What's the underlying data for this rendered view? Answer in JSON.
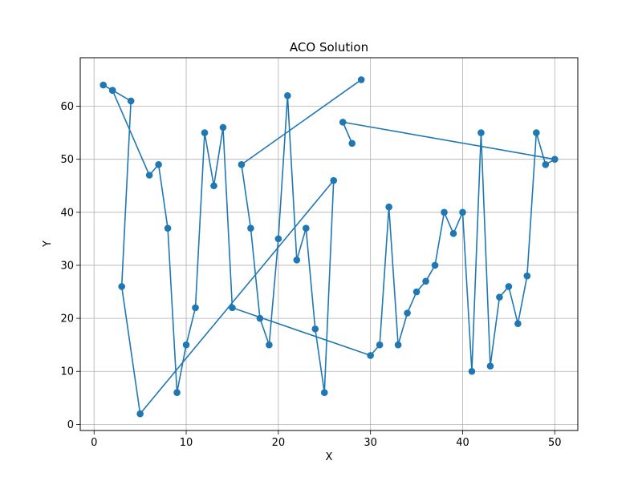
{
  "chart_data": {
    "type": "line",
    "title": "ACO Solution",
    "xlabel": "X",
    "ylabel": "Y",
    "xlim": [
      -1.5,
      52.5
    ],
    "ylim": [
      -1.15,
      69.15
    ],
    "xticks": [
      0,
      10,
      20,
      30,
      40,
      50
    ],
    "yticks": [
      0,
      10,
      20,
      30,
      40,
      50,
      60
    ],
    "grid": true,
    "marker": "circle",
    "color": "#1f77b4",
    "series": [
      {
        "x": [
          29,
          16,
          17,
          18,
          19,
          20,
          21,
          22,
          23,
          24,
          25,
          26,
          5,
          3,
          4,
          2,
          1,
          2,
          6,
          7,
          8,
          9,
          10,
          11,
          12,
          13,
          14,
          15,
          30,
          31,
          32,
          33,
          34,
          35,
          36,
          37,
          38,
          39,
          40,
          41,
          42,
          43,
          44,
          45,
          46,
          47,
          48,
          49,
          50,
          27,
          28
        ],
        "y": [
          65,
          49,
          37,
          20,
          15,
          35,
          62,
          31,
          37,
          18,
          6,
          46,
          2,
          26,
          61,
          63,
          64,
          63,
          47,
          49,
          37,
          6,
          15,
          22,
          55,
          45,
          56,
          22,
          13,
          15,
          41,
          15,
          21,
          25,
          27,
          30,
          40,
          36,
          40,
          10,
          55,
          11,
          24,
          26,
          19,
          28,
          55,
          49,
          50,
          57,
          53
        ]
      }
    ]
  }
}
